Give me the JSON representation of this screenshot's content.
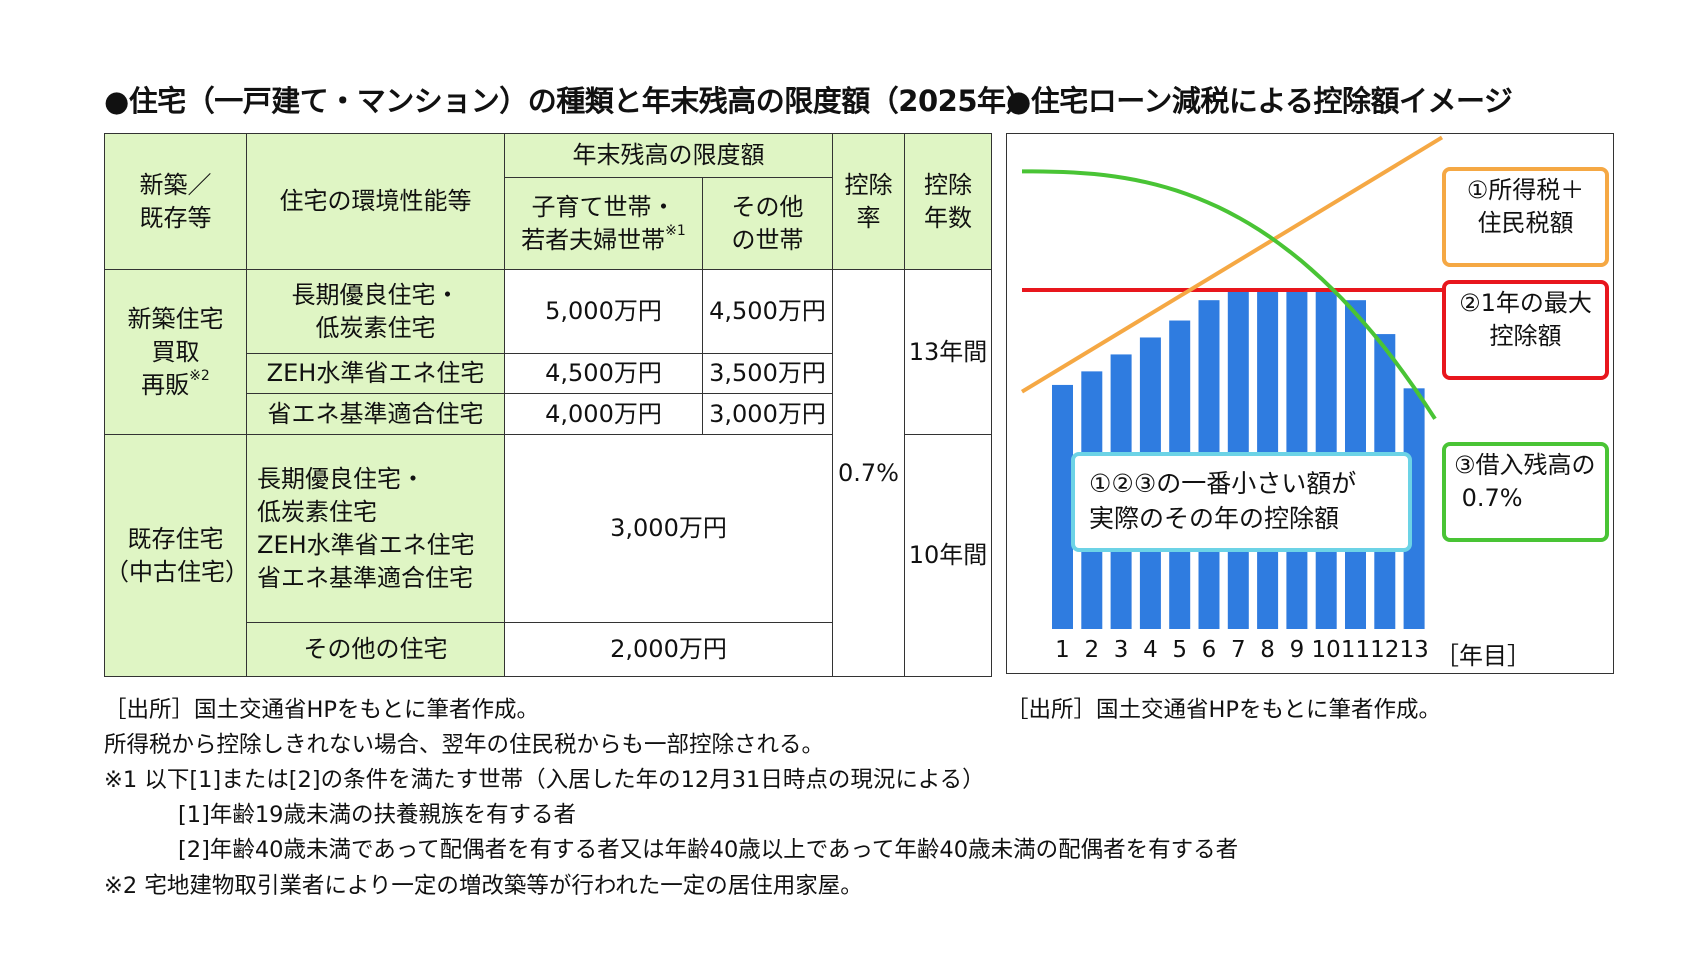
{
  "left_title": "●住宅（一戸建て・マンション）の種類と年末残高の限度額（2025年）",
  "right_title": "●住宅ローン減税による控除額イメージ",
  "table": {
    "h_kind": [
      "新築／",
      "既存等"
    ],
    "h_env": "住宅の環境性能等",
    "h_limit": "年末残高の限度額",
    "h_child": [
      "子育て世帯・",
      "若者夫婦世帯"
    ],
    "h_child_note": "※1",
    "h_other": [
      "その他",
      "の世帯"
    ],
    "h_rate": [
      "控除",
      "率"
    ],
    "h_years": [
      "控除",
      "年数"
    ],
    "new_kind": [
      "新築住宅",
      "買取",
      "再販"
    ],
    "new_kind_note": "※2",
    "row_long": [
      "長期優良住宅・",
      "低炭素住宅"
    ],
    "row_long_child": "5,000万円",
    "row_long_other": "4,500万円",
    "row_zeh": "ZEH水準省エネ住宅",
    "row_zeh_child": "4,500万円",
    "row_zeh_other": "3,500万円",
    "row_eco": "省エネ基準適合住宅",
    "row_eco_child": "4,000万円",
    "row_eco_other": "3,000万円",
    "rate": "0.7%",
    "years_new": "13年間",
    "exist_kind": [
      "既存住宅",
      "（中古住宅）"
    ],
    "exist_env": [
      "長期優良住宅・",
      "低炭素住宅",
      "ZEH水準省エネ住宅",
      "省エネ基準適合住宅"
    ],
    "exist_limit": "3,000万円",
    "years_exist": "10年間",
    "exist_other_env": "その他の住宅",
    "exist_other_limit": "2,000万円"
  },
  "chart_data": {
    "type": "bar",
    "categories": [
      "1",
      "2",
      "3",
      "4",
      "5",
      "6",
      "7",
      "8",
      "9",
      "10",
      "11",
      "12",
      "13"
    ],
    "x_unit": "［年目］",
    "values": [
      0.72,
      0.76,
      0.81,
      0.86,
      0.91,
      0.97,
      1.0,
      1.0,
      1.0,
      1.0,
      0.97,
      0.87,
      0.71
    ],
    "ylim": [
      0,
      1.18
    ],
    "lines": {
      "income_tax_start": 0.7,
      "income_tax_end": 1.45,
      "max_deduction": 1.0,
      "loan_balance_start": 1.35,
      "loan_balance_end": 0.62
    },
    "colors": {
      "bar": "#2f7ce0",
      "income_tax": "#f5a844",
      "max": "#e8161d",
      "balance": "#49c435",
      "note_box": "#6cd3e6"
    },
    "labels": {
      "income_tax": [
        "①所得税＋",
        "住民税額"
      ],
      "max": [
        "②1年の最大",
        "控除額"
      ],
      "balance": [
        "③借入残高の",
        "0.7%"
      ],
      "note": [
        "①②③の一番小さい額が",
        "実際のその年の控除額"
      ]
    }
  },
  "source_left": "［出所］国土交通省HPをもとに筆者作成。",
  "source_right": "［出所］国土交通省HPをもとに筆者作成。",
  "notes": [
    "所得税から控除しきれない場合、翌年の住民税からも一部控除される。",
    "※1 以下[1]または[2]の条件を満たす世帯（入居した年の12月31日時点の現況による）",
    "[1]年齢19歳未満の扶養親族を有する者",
    "[2]年齢40歳未満であって配偶者を有する者又は年齢40歳以上であって年齢40歳未満の配偶者を有する者",
    "※2 宅地建物取引業者により一定の増改築等が行われた一定の居住用家屋。"
  ]
}
